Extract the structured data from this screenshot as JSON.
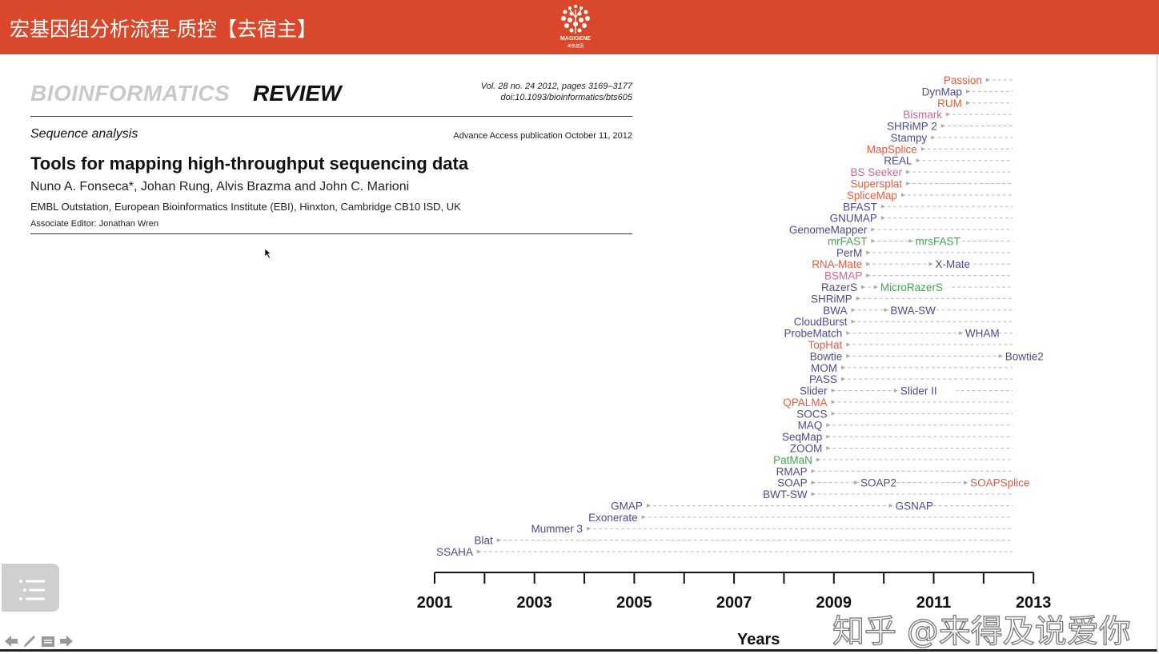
{
  "header": {
    "title": "宏基因组分析流程-质控【去宿主】",
    "logo_brand": "MAGIGENE",
    "logo_sub": "美格基因"
  },
  "paper": {
    "journal": "BIOINFORMATICS",
    "type": "REVIEW",
    "volume": "Vol. 28 no. 24 2012, pages 3169–3177",
    "doi": "doi:10.1093/bioinformatics/bts605",
    "section": "Sequence analysis",
    "access": "Advance Access publication October 11, 2012",
    "title": "Tools for mapping high-throughput sequencing data",
    "authors": "Nuno A. Fonseca*, Johan Rung, Alvis Brazma and John C. Marioni",
    "affiliation": "EMBL Outstation, European Bioinformatics Institute (EBI), Hinxton, Cambridge CB10 ISD, UK",
    "editor": "Associate Editor: Jonathan Wren"
  },
  "colors": {
    "blue": "#4b4b8f",
    "red": "#ea5a3c",
    "pink": "#d2639c",
    "green": "#3aa84c",
    "header": "#d9482b"
  },
  "chart_data": {
    "type": "timeline",
    "xlabel": "Years",
    "xlim": [
      2001,
      2013
    ],
    "ticks": [
      2001,
      2002,
      2003,
      2004,
      2005,
      2006,
      2007,
      2008,
      2009,
      2010,
      2011,
      2012,
      2013
    ],
    "tick_labels": [
      "2001",
      "2003",
      "2005",
      "2007",
      "2009",
      "2011",
      "2013"
    ],
    "tools": [
      {
        "name": "Passion",
        "year": 2012.0,
        "color": "red"
      },
      {
        "name": "DynMap",
        "year": 2011.6,
        "color": "blue"
      },
      {
        "name": "RUM",
        "year": 2011.6,
        "color": "red"
      },
      {
        "name": "Bismark",
        "year": 2011.2,
        "color": "pink"
      },
      {
        "name": "SHRiMP 2",
        "year": 2011.1,
        "color": "blue"
      },
      {
        "name": "Stampy",
        "year": 2010.9,
        "color": "blue"
      },
      {
        "name": "MapSplice",
        "year": 2010.7,
        "color": "red"
      },
      {
        "name": "REAL",
        "year": 2010.6,
        "color": "blue"
      },
      {
        "name": "BS Seeker",
        "year": 2010.4,
        "color": "pink"
      },
      {
        "name": "Supersplat",
        "year": 2010.4,
        "color": "red"
      },
      {
        "name": "SpliceMap",
        "year": 2010.3,
        "color": "red"
      },
      {
        "name": "BFAST",
        "year": 2009.9,
        "color": "blue"
      },
      {
        "name": "GNUMAP",
        "year": 2009.9,
        "color": "blue"
      },
      {
        "name": "GenomeMapper",
        "year": 2009.7,
        "color": "blue"
      },
      {
        "name": "mrFAST",
        "year": 2009.7,
        "color": "green",
        "next": [
          {
            "name": "mrsFAST",
            "year": 2010.6,
            "color": "green"
          }
        ]
      },
      {
        "name": "PerM",
        "year": 2009.6,
        "color": "blue"
      },
      {
        "name": "RNA-Mate",
        "year": 2009.6,
        "color": "red",
        "next": [
          {
            "name": "X-Mate",
            "year": 2011.0,
            "color": "blue"
          }
        ]
      },
      {
        "name": "BSMAP",
        "year": 2009.6,
        "color": "pink"
      },
      {
        "name": "RazerS",
        "year": 2009.5,
        "color": "blue",
        "next": [
          {
            "name": "MicroRazerS",
            "year": 2009.9,
            "color": "green"
          }
        ]
      },
      {
        "name": "SHRiMP",
        "year": 2009.4,
        "color": "blue"
      },
      {
        "name": "BWA",
        "year": 2009.3,
        "color": "blue",
        "next": [
          {
            "name": "BWA-SW",
            "year": 2010.1,
            "color": "blue"
          }
        ]
      },
      {
        "name": "CloudBurst",
        "year": 2009.3,
        "color": "blue"
      },
      {
        "name": "ProbeMatch",
        "year": 2009.2,
        "color": "blue",
        "next": [
          {
            "name": "WHAM",
            "year": 2011.6,
            "color": "blue"
          }
        ]
      },
      {
        "name": "TopHat",
        "year": 2009.2,
        "color": "red"
      },
      {
        "name": "Bowtie",
        "year": 2009.2,
        "color": "blue",
        "next": [
          {
            "name": "Bowtie2",
            "year": 2012.4,
            "color": "blue"
          }
        ]
      },
      {
        "name": "MOM",
        "year": 2009.1,
        "color": "blue"
      },
      {
        "name": "PASS",
        "year": 2009.1,
        "color": "blue"
      },
      {
        "name": "Slider",
        "year": 2008.9,
        "color": "blue",
        "next": [
          {
            "name": "Slider II",
            "year": 2010.3,
            "color": "blue"
          }
        ]
      },
      {
        "name": "QPALMA",
        "year": 2008.9,
        "color": "red"
      },
      {
        "name": "SOCS",
        "year": 2008.9,
        "color": "blue"
      },
      {
        "name": "MAQ",
        "year": 2008.8,
        "color": "blue"
      },
      {
        "name": "SeqMap",
        "year": 2008.8,
        "color": "blue"
      },
      {
        "name": "ZOOM",
        "year": 2008.8,
        "color": "blue"
      },
      {
        "name": "PatMaN",
        "year": 2008.6,
        "color": "green"
      },
      {
        "name": "RMAP",
        "year": 2008.5,
        "color": "blue"
      },
      {
        "name": "SOAP",
        "year": 2008.5,
        "color": "blue",
        "next": [
          {
            "name": "SOAP2",
            "year": 2009.5,
            "color": "blue"
          },
          {
            "name": "SOAPSplice",
            "year": 2011.7,
            "color": "red"
          }
        ]
      },
      {
        "name": "BWT-SW",
        "year": 2008.5,
        "color": "blue"
      },
      {
        "name": "GMAP",
        "year": 2005.2,
        "color": "blue",
        "next": [
          {
            "name": "GSNAP",
            "year": 2010.2,
            "color": "blue"
          }
        ]
      },
      {
        "name": "Exonerate",
        "year": 2005.1,
        "color": "blue"
      },
      {
        "name": "Mummer 3",
        "year": 2004.0,
        "color": "blue"
      },
      {
        "name": "Blat",
        "year": 2002.2,
        "color": "blue"
      },
      {
        "name": "SSAHA",
        "year": 2001.8,
        "color": "blue"
      }
    ]
  },
  "watermark": "知乎 @来得及说爱你"
}
